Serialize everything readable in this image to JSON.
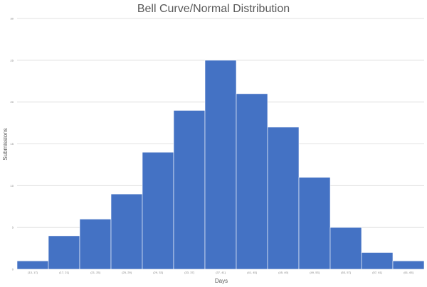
{
  "chart_data": {
    "type": "bar",
    "title": "Bell Curve/Normal Distribution",
    "xlabel": "Days",
    "ylabel": "Submissions",
    "categories": [
      "[13, 17]",
      "(17, 21]",
      "(21, 25]",
      "(25, 29]",
      "(29, 33]",
      "(33, 37]",
      "(37, 41]",
      "(41, 45]",
      "(45, 49]",
      "(49, 53]",
      "(53, 57]",
      "(57, 61]",
      "(61, 65]"
    ],
    "values": [
      1,
      4,
      6,
      9,
      14,
      19,
      25,
      21,
      17,
      11,
      5,
      2,
      1
    ],
    "ylim": [
      0,
      30
    ],
    "yticks": [
      "0",
      "5",
      "10",
      "15",
      "20",
      "25",
      "30"
    ],
    "grid": true,
    "colors": {
      "bar": "#4472c4",
      "bar_edge": "#ffffff",
      "grid": "#d9d9d9",
      "text": "#595959"
    }
  }
}
